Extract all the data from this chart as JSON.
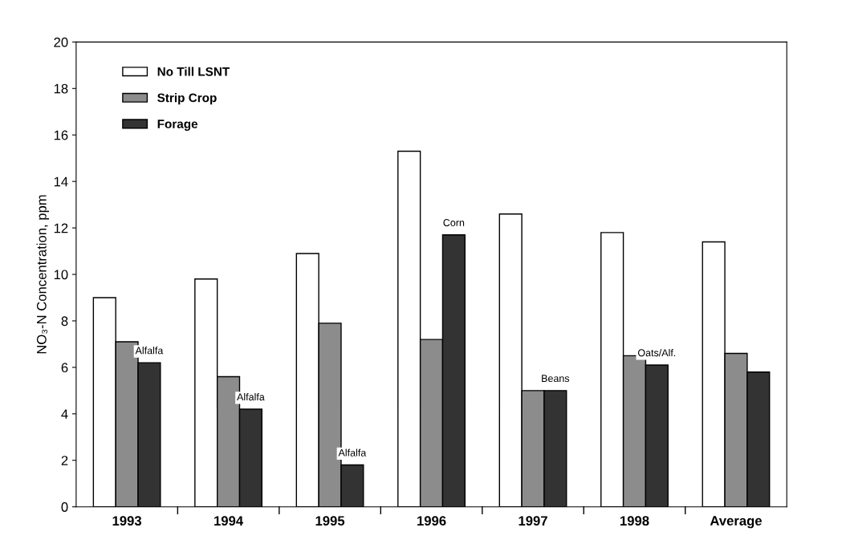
{
  "chart_data": {
    "type": "bar",
    "ylabel": "NO₃-N Concentration, ppm",
    "categories": [
      "1993",
      "1994",
      "1995",
      "1996",
      "1997",
      "1998",
      "Average"
    ],
    "series": [
      {
        "name": "No Till LSNT",
        "color": "#ffffff",
        "values": [
          9.0,
          9.8,
          10.9,
          15.3,
          12.6,
          11.8,
          11.4
        ]
      },
      {
        "name": "Strip Crop",
        "color": "#8c8c8c",
        "values": [
          7.1,
          5.6,
          7.9,
          7.2,
          5.0,
          6.5,
          6.6
        ]
      },
      {
        "name": "Forage",
        "color": "#333333",
        "values": [
          6.2,
          4.2,
          1.8,
          11.7,
          5.0,
          6.1,
          5.8
        ]
      }
    ],
    "ylim": [
      0,
      20
    ],
    "yticks": [
      0,
      2,
      4,
      6,
      8,
      10,
      12,
      14,
      16,
      18,
      20
    ],
    "legend": "top left",
    "annotations": [
      "Alfalfa",
      "Alfalfa",
      "Alfalfa",
      "Corn",
      "Beans",
      "Oats/Alf."
    ]
  }
}
